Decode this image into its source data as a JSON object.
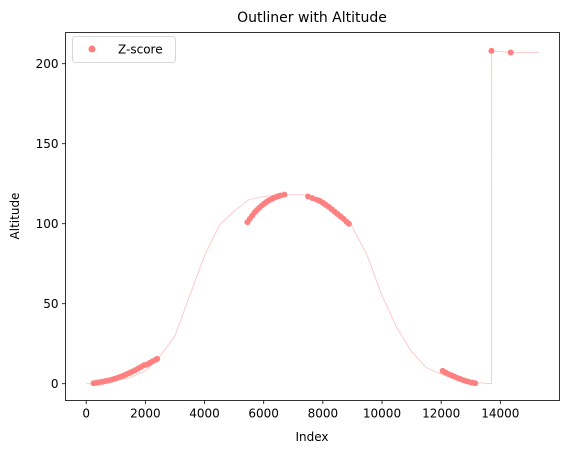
{
  "chart_data": {
    "type": "scatter",
    "title": "Outliner with Altitude",
    "xlabel": "Index",
    "ylabel": "Altitude",
    "xlim": [
      -700,
      16000
    ],
    "ylim": [
      -10.5,
      219.5
    ],
    "x_ticks": [
      0,
      2000,
      4000,
      6000,
      8000,
      10000,
      12000,
      14000
    ],
    "x_tick_labels": [
      "0",
      "2000",
      "4000",
      "6000",
      "8000",
      "10000",
      "12000",
      "14000"
    ],
    "y_ticks": [
      0,
      50,
      100,
      150,
      200
    ],
    "y_tick_labels": [
      "0",
      "50",
      "100",
      "150",
      "200"
    ],
    "grid": false,
    "legend": {
      "position": "top-left",
      "entries": [
        "Z-score"
      ]
    },
    "colors": {
      "points": "#ff8080",
      "line": "#ffc0c0",
      "axes": "#000000"
    },
    "line_series": {
      "x": [
        0,
        200,
        500,
        1000,
        1500,
        2000,
        2400,
        3000,
        3500,
        4000,
        4500,
        5000,
        5500,
        6000,
        6500,
        7000,
        7500,
        8000,
        8500,
        9000,
        9500,
        10000,
        10500,
        11000,
        11500,
        12000,
        12500,
        13000,
        13700,
        13710,
        14000,
        14400,
        15300
      ],
      "y": [
        0,
        0,
        0.5,
        2,
        4,
        8,
        15,
        30,
        55,
        80,
        99,
        108,
        115,
        117,
        118,
        118,
        118,
        115,
        108,
        98,
        80,
        55,
        35,
        20,
        10,
        6,
        3,
        1,
        0,
        208,
        207.5,
        207,
        207
      ]
    },
    "series": [
      {
        "name": "Z-score",
        "x": [
          250,
          350,
          450,
          550,
          650,
          750,
          850,
          950,
          1050,
          1150,
          1250,
          1350,
          1450,
          1550,
          1650,
          1750,
          1850,
          1950,
          2050,
          2150,
          2250,
          2350,
          2400,
          5450,
          5530,
          5610,
          5690,
          5770,
          5850,
          5930,
          6010,
          6090,
          6170,
          6250,
          6330,
          6410,
          6490,
          6570,
          6700,
          7500,
          7650,
          7800,
          7900,
          8000,
          8100,
          8200,
          8300,
          8400,
          8500,
          8600,
          8700,
          8800,
          8880,
          12050,
          12150,
          12250,
          12350,
          12450,
          12550,
          12650,
          12750,
          12850,
          12950,
          13050,
          13150,
          13700,
          14350
        ],
        "y": [
          0.3,
          0.6,
          0.9,
          1.2,
          1.6,
          2.0,
          2.5,
          3.0,
          3.6,
          4.3,
          5.0,
          5.8,
          6.6,
          7.5,
          8.4,
          9.4,
          10.4,
          11.5,
          12.0,
          13.0,
          14.0,
          15.0,
          15.5,
          101.0,
          103.0,
          105.0,
          107.0,
          108.5,
          110.0,
          111.3,
          112.5,
          113.5,
          114.5,
          115.3,
          116.0,
          116.6,
          117.2,
          117.6,
          118.2,
          117.0,
          116.0,
          115.0,
          114.2,
          113.0,
          111.8,
          110.5,
          109.0,
          107.5,
          106.0,
          104.5,
          103.0,
          101.2,
          100.0,
          8.0,
          7.0,
          6.0,
          5.2,
          4.4,
          3.6,
          2.9,
          2.2,
          1.6,
          1.1,
          0.7,
          0.3,
          208.0,
          207.0
        ]
      }
    ]
  }
}
